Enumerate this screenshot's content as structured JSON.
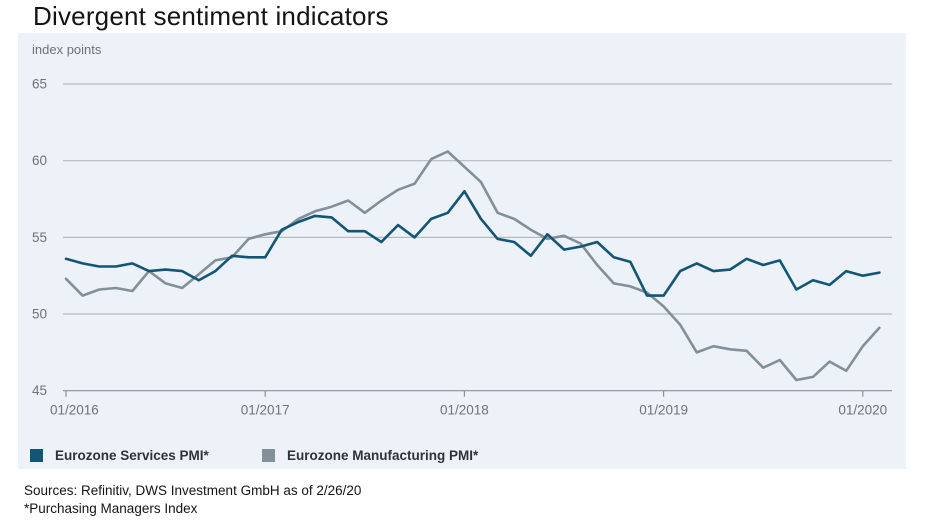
{
  "title": "Divergent sentiment indicators",
  "footer": {
    "sources": "Sources: Refinitiv, DWS Investment GmbH as of 2/26/20",
    "footnote": "*Purchasing Managers Index"
  },
  "panel_style": {
    "background": "#edf1f8",
    "gridline_color": "#b6bac0",
    "axis_color": "#8b9096",
    "tick_label_color": "#6d7379"
  },
  "chart_data": {
    "type": "line",
    "title": "Divergent sentiment indicators",
    "ylabel": "index points",
    "xlabel": "",
    "ylim": [
      45,
      65
    ],
    "grid": "horizontal",
    "legend_position": "bottom-left",
    "y_ticks": [
      65,
      60,
      55,
      50,
      45
    ],
    "x_tick_positions": [
      0,
      12,
      24,
      36,
      48
    ],
    "x_tick_labels": [
      "01/2016",
      "01/2017",
      "01/2018",
      "01/2019",
      "01/2020"
    ],
    "categories": [
      "2016-01",
      "2016-02",
      "2016-03",
      "2016-04",
      "2016-05",
      "2016-06",
      "2016-07",
      "2016-08",
      "2016-09",
      "2016-10",
      "2016-11",
      "2016-12",
      "2017-01",
      "2017-02",
      "2017-03",
      "2017-04",
      "2017-05",
      "2017-06",
      "2017-07",
      "2017-08",
      "2017-09",
      "2017-10",
      "2017-11",
      "2017-12",
      "2018-01",
      "2018-02",
      "2018-03",
      "2018-04",
      "2018-05",
      "2018-06",
      "2018-07",
      "2018-08",
      "2018-09",
      "2018-10",
      "2018-11",
      "2018-12",
      "2019-01",
      "2019-02",
      "2019-03",
      "2019-04",
      "2019-05",
      "2019-06",
      "2019-07",
      "2019-08",
      "2019-09",
      "2019-10",
      "2019-11",
      "2019-12",
      "2020-01",
      "2020-02"
    ],
    "series": [
      {
        "name": "Eurozone Services PMI*",
        "color": "#135577",
        "values": [
          53.6,
          53.3,
          53.1,
          53.1,
          53.3,
          52.8,
          52.9,
          52.8,
          52.2,
          52.8,
          53.8,
          53.7,
          53.7,
          55.5,
          56.0,
          56.4,
          56.3,
          55.4,
          55.4,
          54.7,
          55.8,
          55.0,
          56.2,
          56.6,
          58.0,
          56.2,
          54.9,
          54.7,
          53.8,
          55.2,
          54.2,
          54.4,
          54.7,
          53.7,
          53.4,
          51.2,
          51.2,
          52.8,
          53.3,
          52.8,
          52.9,
          53.6,
          53.2,
          53.5,
          51.6,
          52.2,
          51.9,
          52.8,
          52.5,
          52.7
        ]
      },
      {
        "name": "Eurozone Manufacturing PMI*",
        "color": "#82909a",
        "values": [
          52.3,
          51.2,
          51.6,
          51.7,
          51.5,
          52.8,
          52.0,
          51.7,
          52.6,
          53.5,
          53.7,
          54.9,
          55.2,
          55.4,
          56.2,
          56.7,
          57.0,
          57.4,
          56.6,
          57.4,
          58.1,
          58.5,
          60.1,
          60.6,
          59.6,
          58.6,
          56.6,
          56.2,
          55.5,
          54.9,
          55.1,
          54.6,
          53.2,
          52.0,
          51.8,
          51.4,
          50.5,
          49.3,
          47.5,
          47.9,
          47.7,
          47.6,
          46.5,
          47.0,
          45.7,
          45.9,
          46.9,
          46.3,
          47.9,
          49.1
        ]
      }
    ]
  }
}
